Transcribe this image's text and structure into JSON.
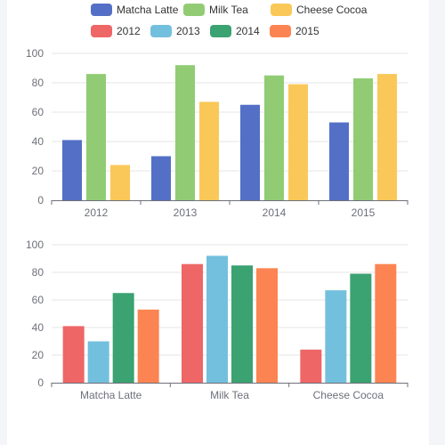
{
  "colors": {
    "page_background": "#ffffff",
    "side_panel": "#f4f5f8",
    "gridline": "#e6e6e6",
    "axis_line": "#6e7079",
    "tick_label": "#6e7079",
    "legend_text": "#333333"
  },
  "chart_data": [
    {
      "type": "bar",
      "categories": [
        "2012",
        "2013",
        "2014",
        "2015"
      ],
      "series": [
        {
          "name": "Matcha Latte",
          "color": "#5470c6",
          "values": [
            41,
            30,
            65,
            53
          ]
        },
        {
          "name": "Milk Tea",
          "color": "#91cc75",
          "values": [
            86,
            92,
            85,
            83
          ]
        },
        {
          "name": "Cheese Cocoa",
          "color": "#fac858",
          "values": [
            24,
            67,
            79,
            86
          ]
        }
      ],
      "ylim": [
        0,
        100
      ],
      "yticks": [
        0,
        20,
        40,
        60,
        80,
        100
      ],
      "grid": true,
      "legend_position": "top-center"
    },
    {
      "type": "bar",
      "categories": [
        "Matcha Latte",
        "Milk Tea",
        "Cheese Cocoa"
      ],
      "series": [
        {
          "name": "2012",
          "color": "#ee6666",
          "values": [
            41,
            86,
            24
          ]
        },
        {
          "name": "2013",
          "color": "#73c0de",
          "values": [
            30,
            92,
            67
          ]
        },
        {
          "name": "2014",
          "color": "#3ba272",
          "values": [
            65,
            85,
            79
          ]
        },
        {
          "name": "2015",
          "color": "#fc8452",
          "values": [
            53,
            83,
            86
          ]
        }
      ],
      "ylim": [
        0,
        100
      ],
      "yticks": [
        0,
        20,
        40,
        60,
        80,
        100
      ],
      "grid": true,
      "legend_position": "top-center"
    }
  ]
}
